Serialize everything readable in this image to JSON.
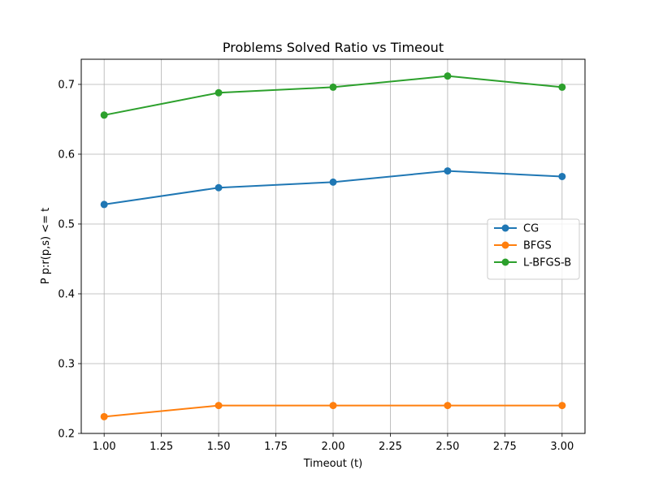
{
  "chart_data": {
    "type": "line",
    "title": "Problems Solved Ratio vs Timeout",
    "xlabel": "Timeout (t)",
    "ylabel": "P p:r(p,s) <= t",
    "xlim": [
      0.9,
      3.1
    ],
    "ylim": [
      0.2,
      0.736
    ],
    "x_ticks": [
      1.0,
      1.25,
      1.5,
      1.75,
      2.0,
      2.25,
      2.5,
      2.75,
      3.0
    ],
    "x_tick_labels": [
      "1.00",
      "1.25",
      "1.50",
      "1.75",
      "2.00",
      "2.25",
      "2.50",
      "2.75",
      "3.00"
    ],
    "y_ticks": [
      0.2,
      0.3,
      0.4,
      0.5,
      0.6,
      0.7
    ],
    "y_tick_labels": [
      "0.2",
      "0.3",
      "0.4",
      "0.5",
      "0.6",
      "0.7"
    ],
    "grid": true,
    "legend_position": "center-right",
    "x": [
      1.0,
      1.5,
      2.0,
      2.5,
      3.0
    ],
    "series": [
      {
        "name": "CG",
        "color": "#1f77b4",
        "marker": "circle",
        "values": [
          0.528,
          0.552,
          0.56,
          0.576,
          0.568
        ]
      },
      {
        "name": "BFGS",
        "color": "#ff7f0e",
        "marker": "circle",
        "values": [
          0.224,
          0.24,
          0.24,
          0.24,
          0.24
        ]
      },
      {
        "name": "L-BFGS-B",
        "color": "#2ca02c",
        "marker": "circle",
        "values": [
          0.656,
          0.688,
          0.696,
          0.712,
          0.696
        ]
      }
    ]
  }
}
